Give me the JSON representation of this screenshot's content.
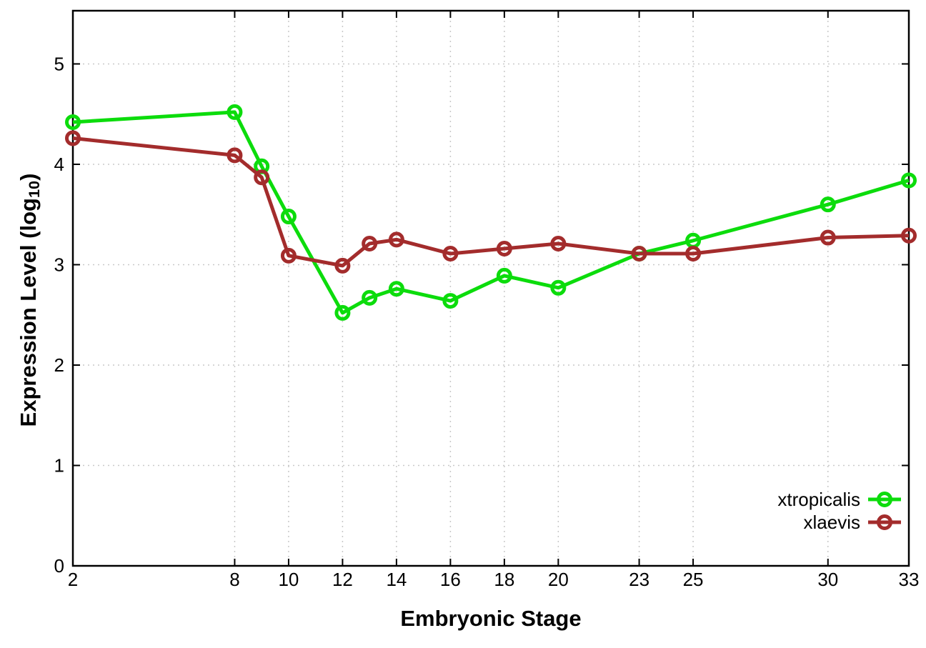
{
  "chart_data": {
    "type": "line",
    "title": "",
    "xlabel": "Embryonic Stage",
    "ylabel": {
      "prefix": "Expression Level (log",
      "sub": "10",
      "suffix": ")"
    },
    "x": [
      2,
      8,
      9,
      10,
      12,
      13,
      14,
      16,
      18,
      20,
      23,
      25,
      30,
      33
    ],
    "series": [
      {
        "name": "xtropicalis",
        "color": "#0cdc0c",
        "values": [
          4.42,
          4.52,
          3.98,
          3.48,
          2.52,
          2.67,
          2.76,
          2.64,
          2.89,
          2.77,
          3.11,
          3.24,
          3.6,
          3.84
        ]
      },
      {
        "name": "xlaevis",
        "color": "#a32c2c",
        "values": [
          4.26,
          4.09,
          3.87,
          3.09,
          2.99,
          3.21,
          3.25,
          3.11,
          3.16,
          3.21,
          3.11,
          3.11,
          3.27,
          3.29
        ]
      }
    ],
    "x_ticks": [
      2,
      8,
      10,
      12,
      14,
      16,
      18,
      20,
      23,
      25,
      30,
      33
    ],
    "y_ticks": [
      0,
      1,
      2,
      3,
      4,
      5
    ],
    "xlim": [
      2,
      33
    ],
    "ylim": [
      0,
      5.53
    ],
    "grid": true,
    "legend_position": "bottom-right-inside",
    "marker": "open-circle",
    "colors": {
      "grid": "#c9c9c9",
      "axis": "#000000",
      "text": "#000000",
      "background": "#ffffff"
    }
  }
}
